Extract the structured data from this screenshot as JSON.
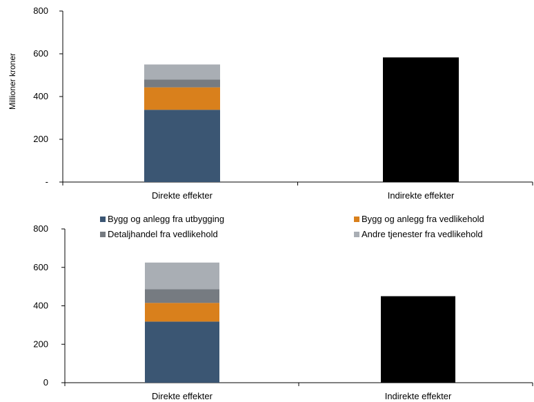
{
  "chart_data": [
    {
      "type": "bar",
      "stacked": true,
      "categories": [
        "Direkte effekter",
        "Indirekte effekter"
      ],
      "ylabel": "Millioner kroner",
      "ylim": [
        0,
        800
      ],
      "yticks": [
        0,
        200,
        400,
        600,
        800
      ],
      "ytick_labels": [
        "-",
        "200",
        "400",
        "600",
        "800"
      ],
      "series": [
        {
          "name": "Bygg og anlegg fra utbygging",
          "color": "#3b5673",
          "values": [
            338,
            583
          ]
        },
        {
          "name": "Bygg og anlegg fra vedlikehold",
          "color": "#d9801c",
          "values": [
            105,
            0
          ]
        },
        {
          "name": "Detaljhandel fra vedlikehold",
          "color": "#767b81",
          "values": [
            37,
            0
          ]
        },
        {
          "name": "Andre tjenester fra vedlikehold",
          "color": "#a9aeb4",
          "values": [
            70,
            0
          ]
        }
      ],
      "total_bar_color": "#000000",
      "grid": false,
      "legend": "none"
    },
    {
      "type": "bar",
      "stacked": true,
      "categories": [
        "Direkte effekter",
        "Indirekte effekter"
      ],
      "ylabel": "",
      "ylim": [
        0,
        800
      ],
      "yticks": [
        0,
        200,
        400,
        600,
        800
      ],
      "ytick_labels": [
        "0",
        "200",
        "400",
        "600",
        "800"
      ],
      "series": [
        {
          "name": "Bygg og anlegg fra utbygging",
          "color": "#3b5673",
          "values": [
            318,
            450
          ]
        },
        {
          "name": "Bygg og anlegg fra vedlikehold",
          "color": "#d9801c",
          "values": [
            97,
            0
          ]
        },
        {
          "name": "Detaljhandel fra vedlikehold",
          "color": "#767b81",
          "values": [
            72,
            0
          ]
        },
        {
          "name": "Andre tjenester fra vedlikehold",
          "color": "#a9aeb4",
          "values": [
            138,
            0
          ]
        }
      ],
      "total_bar_color": "#000000",
      "grid": false,
      "legend": "top"
    }
  ]
}
